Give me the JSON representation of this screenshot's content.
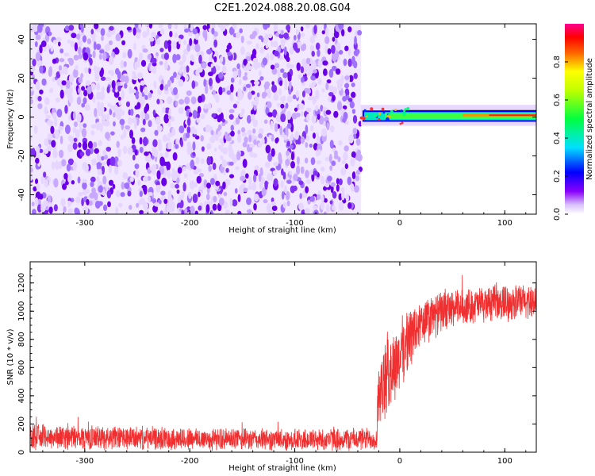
{
  "title": "C2E1.2024.088.20.08.G04",
  "chart_data": [
    {
      "type": "heatmap",
      "name": "spectrogram",
      "xlabel": "Height of straight line (km)",
      "ylabel": "Frequency (Hz)",
      "xlim": [
        -352,
        130
      ],
      "ylim": [
        -50,
        48
      ],
      "xticks": [
        -300,
        -200,
        -100,
        0,
        100
      ],
      "yticks": [
        -40,
        -20,
        0,
        20,
        40
      ],
      "noise_region_x": [
        -352,
        -37
      ],
      "signal_x_start": -37,
      "signal_band_hz": [
        -2,
        3
      ],
      "colorbar": {
        "label": "Normalized spectral amplitude",
        "range": [
          0,
          1
        ],
        "ticks": [
          0.0,
          0.2,
          0.4,
          0.6,
          0.8
        ],
        "colors": [
          "#ffffff",
          "#c9a6ff",
          "#7000e0",
          "#0000ff",
          "#00e0ff",
          "#00ff60",
          "#ffff00",
          "#ff7000",
          "#ff0000",
          "#ff0090"
        ]
      },
      "series_color": "#7a20ff"
    },
    {
      "type": "line",
      "name": "snr",
      "xlabel": "Height of straight line (km)",
      "ylabel": "SNR (10 * v/v)",
      "xlim": [
        -352,
        130
      ],
      "ylim": [
        0,
        1350
      ],
      "xticks": [
        -300,
        -200,
        -100,
        0,
        100
      ],
      "yticks": [
        0,
        200,
        400,
        600,
        800,
        1000,
        1200
      ],
      "color": "#f03030",
      "profile": {
        "x": [
          -352,
          -300,
          -250,
          -200,
          -150,
          -100,
          -50,
          -22,
          -21,
          -15,
          -10,
          -5,
          0,
          5,
          10,
          20,
          30,
          40,
          60,
          80,
          100,
          115,
          130
        ],
        "mean": [
          110,
          105,
          100,
          95,
          90,
          88,
          92,
          95,
          380,
          480,
          560,
          620,
          680,
          760,
          820,
          900,
          950,
          1000,
          1030,
          1050,
          1060,
          1065,
          1075
        ],
        "spread": [
          95,
          95,
          90,
          90,
          85,
          85,
          90,
          90,
          280,
          300,
          300,
          290,
          280,
          260,
          240,
          200,
          180,
          160,
          140,
          140,
          140,
          140,
          140
        ]
      }
    }
  ]
}
